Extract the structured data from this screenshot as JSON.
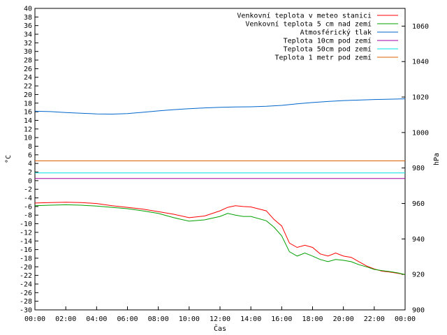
{
  "chart_data": {
    "type": "line",
    "xlabel": "Čas",
    "ylabel": "°C",
    "y2label": "hPa",
    "ylim": [
      -30,
      40
    ],
    "y2lim": [
      900,
      1070
    ],
    "xlim": [
      0,
      24
    ],
    "x_ticks": [
      "00:00",
      "02:00",
      "04:00",
      "06:00",
      "08:00",
      "10:00",
      "12:00",
      "14:00",
      "16:00",
      "18:00",
      "20:00",
      "22:00",
      "00:00"
    ],
    "y_ticks": [
      40,
      38,
      36,
      34,
      32,
      30,
      28,
      26,
      24,
      22,
      20,
      18,
      16,
      14,
      12,
      10,
      8,
      6,
      4,
      2,
      0,
      -2,
      -4,
      -6,
      -8,
      -10,
      -12,
      -14,
      -16,
      -18,
      -20,
      -22,
      -24,
      -26,
      -28,
      -30
    ],
    "y2_ticks": [
      1060,
      1040,
      1020,
      1000,
      980,
      960,
      940,
      920,
      900
    ],
    "grid": false,
    "legend_position": "top-right",
    "series": [
      {
        "name": "Venkovní teplota v meteo stanici",
        "axis": "left",
        "color": "#ff0000",
        "x": [
          0,
          1,
          2,
          3,
          4,
          5,
          6,
          7,
          8,
          9,
          10,
          11,
          12,
          12.5,
          13,
          13.5,
          14,
          15,
          15.5,
          16,
          16.5,
          17,
          17.5,
          18,
          18.5,
          19,
          19.5,
          20,
          20.5,
          21,
          21.5,
          22,
          22.5,
          23,
          23.5,
          24
        ],
        "y": [
          -5.2,
          -5.1,
          -5.0,
          -5.1,
          -5.3,
          -5.8,
          -6.2,
          -6.6,
          -7.2,
          -7.8,
          -8.6,
          -8.2,
          -7.0,
          -6.2,
          -5.8,
          -6.0,
          -6.1,
          -7.0,
          -9.0,
          -10.5,
          -14.5,
          -15.5,
          -15.0,
          -15.5,
          -17.0,
          -17.5,
          -16.8,
          -17.5,
          -17.8,
          -18.8,
          -19.8,
          -20.5,
          -21.0,
          -21.2,
          -21.5,
          -21.8
        ]
      },
      {
        "name": "Venkovní teplota 5 cm nad zemí",
        "axis": "left",
        "color": "#00a000",
        "x": [
          0,
          1,
          2,
          3,
          4,
          5,
          6,
          7,
          8,
          9,
          10,
          11,
          12,
          12.5,
          13,
          13.5,
          14,
          15,
          15.5,
          16,
          16.5,
          17,
          17.5,
          18,
          18.5,
          19,
          19.5,
          20,
          20.5,
          21,
          21.5,
          22,
          22.5,
          23,
          23.5,
          24
        ],
        "y": [
          -5.8,
          -5.7,
          -5.6,
          -5.7,
          -5.9,
          -6.2,
          -6.5,
          -7.0,
          -7.6,
          -8.6,
          -9.4,
          -9.1,
          -8.3,
          -7.6,
          -8.0,
          -8.3,
          -8.3,
          -9.3,
          -10.8,
          -12.8,
          -16.5,
          -17.5,
          -16.8,
          -17.5,
          -18.3,
          -18.8,
          -18.3,
          -18.5,
          -18.8,
          -19.5,
          -20.0,
          -20.6,
          -20.9,
          -21.1,
          -21.4,
          -21.8
        ]
      },
      {
        "name": "Atmosférický tlak",
        "axis": "right",
        "color": "#0066cc",
        "x": [
          0,
          1,
          2,
          3,
          4,
          5,
          6,
          7,
          8,
          9,
          10,
          11,
          12,
          13,
          14,
          15,
          16,
          17,
          18,
          19,
          20,
          21,
          22,
          23,
          24
        ],
        "y": [
          1012.0,
          1011.8,
          1011.3,
          1010.9,
          1010.5,
          1010.4,
          1010.7,
          1011.4,
          1012.2,
          1012.9,
          1013.4,
          1013.9,
          1014.2,
          1014.4,
          1014.5,
          1014.8,
          1015.3,
          1016.2,
          1016.9,
          1017.5,
          1018.0,
          1018.3,
          1018.6,
          1018.8,
          1019.0
        ]
      },
      {
        "name": "Teplota 10cm pod zemí",
        "axis": "left",
        "color": "#a000a0",
        "x": [
          0,
          24
        ],
        "y": [
          0.5,
          0.5
        ]
      },
      {
        "name": "Teplota 50cm pod zemí",
        "axis": "left",
        "color": "#00e0e0",
        "x": [
          0,
          24
        ],
        "y": [
          1.8,
          1.8
        ]
      },
      {
        "name": "Teplota 1 metr pod zemí",
        "axis": "left",
        "color": "#e06000",
        "x": [
          0,
          24
        ],
        "y": [
          4.6,
          4.6
        ]
      }
    ]
  }
}
